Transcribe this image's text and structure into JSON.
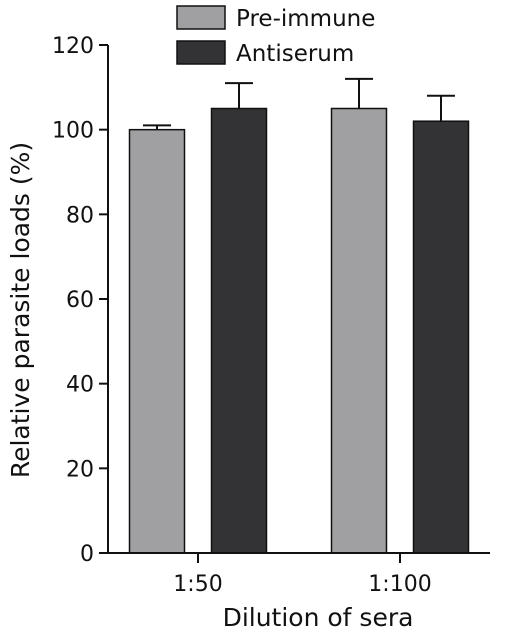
{
  "chart_data": {
    "type": "bar",
    "title": "",
    "xlabel": "Dilution of sera",
    "ylabel": "Relative parasite loads (%)",
    "ylim": [
      0,
      120
    ],
    "yticks": [
      "0",
      "20",
      "40",
      "60",
      "80",
      "100",
      "120"
    ],
    "categories": [
      "1:50",
      "1:100"
    ],
    "grid": false,
    "legend_position": "top-center",
    "series": [
      {
        "name": "Pre-immune",
        "color": "#a0a0a3",
        "values": [
          100,
          105
        ],
        "error": [
          1,
          7
        ]
      },
      {
        "name": "Antiserum",
        "color": "#333335",
        "values": [
          105,
          102
        ],
        "error": [
          6,
          6
        ]
      }
    ]
  }
}
